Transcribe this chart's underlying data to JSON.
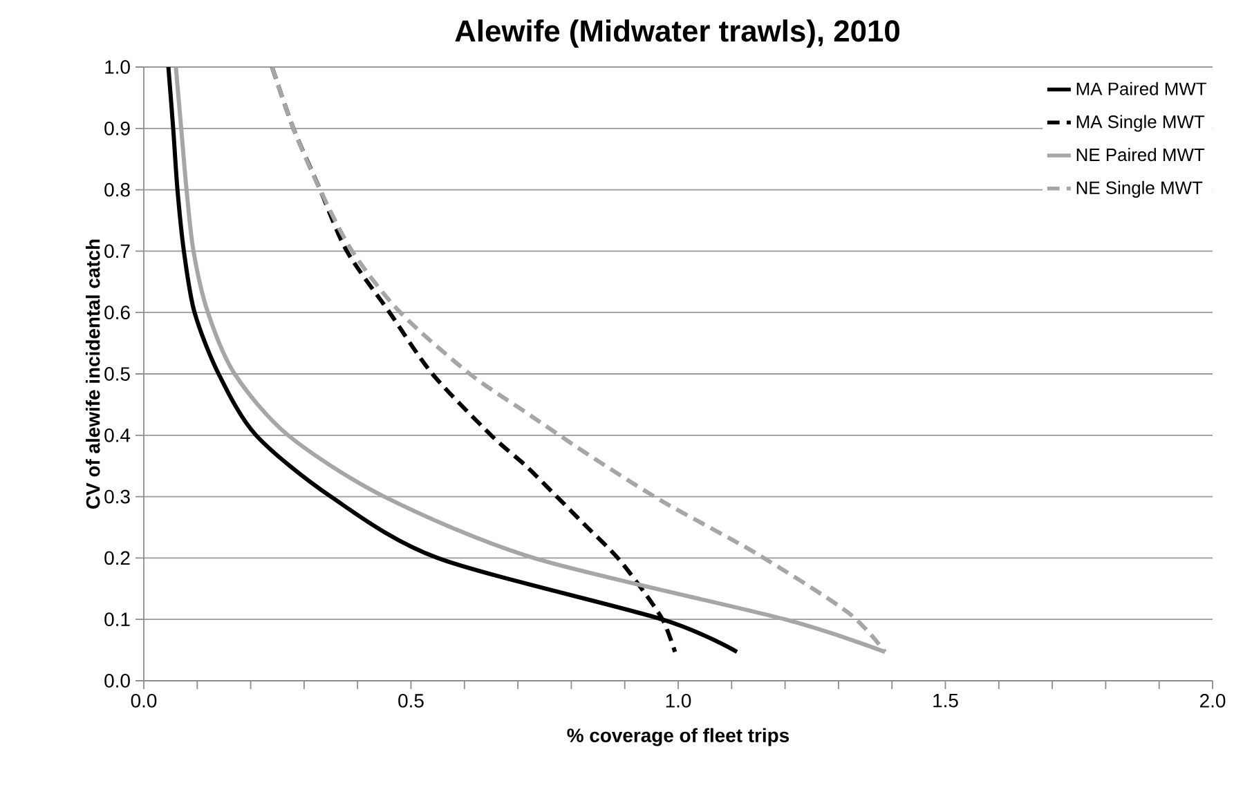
{
  "chart_data": {
    "type": "line",
    "title": "Alewife (Midwater trawls), 2010",
    "xlabel": "% coverage of fleet trips",
    "ylabel": "CV of alewife incidental catch",
    "xlim": [
      0,
      2
    ],
    "ylim": [
      0,
      1
    ],
    "xticks": [
      {
        "value": 0,
        "label": "0.0"
      },
      {
        "value": 0.1,
        "label": null
      },
      {
        "value": 0.2,
        "label": null
      },
      {
        "value": 0.3,
        "label": null
      },
      {
        "value": 0.4,
        "label": null
      },
      {
        "value": 0.5,
        "label": "0.5"
      },
      {
        "value": 0.6,
        "label": null
      },
      {
        "value": 0.7,
        "label": null
      },
      {
        "value": 0.8,
        "label": null
      },
      {
        "value": 0.9,
        "label": null
      },
      {
        "value": 1.0,
        "label": "1.0"
      },
      {
        "value": 1.1,
        "label": null
      },
      {
        "value": 1.2,
        "label": null
      },
      {
        "value": 1.3,
        "label": null
      },
      {
        "value": 1.4,
        "label": null
      },
      {
        "value": 1.5,
        "label": "1.5"
      },
      {
        "value": 1.6,
        "label": null
      },
      {
        "value": 1.7,
        "label": null
      },
      {
        "value": 1.8,
        "label": null
      },
      {
        "value": 1.9,
        "label": null
      },
      {
        "value": 2.0,
        "label": "2.0"
      }
    ],
    "yticks": [
      {
        "value": 0,
        "label": "0.0"
      },
      {
        "value": 0.1,
        "label": "0.1"
      },
      {
        "value": 0.2,
        "label": "0.2"
      },
      {
        "value": 0.3,
        "label": "0.3"
      },
      {
        "value": 0.4,
        "label": "0.4"
      },
      {
        "value": 0.5,
        "label": "0.5"
      },
      {
        "value": 0.6,
        "label": "0.6"
      },
      {
        "value": 0.7,
        "label": "0.7"
      },
      {
        "value": 0.8,
        "label": "0.8"
      },
      {
        "value": 0.9,
        "label": "0.9"
      },
      {
        "value": 1.0,
        "label": "1.0"
      }
    ],
    "grid": "y",
    "legend": "top right",
    "marker": "none",
    "series": [
      {
        "name": "MA Paired MWT",
        "color": "#000000",
        "line_style": "solid",
        "x": [
          0.046,
          0.055,
          0.063,
          0.075,
          0.095,
          0.14,
          0.21,
          0.35,
          0.55,
          0.97,
          1.11
        ],
        "values": [
          1.0,
          0.9,
          0.8,
          0.7,
          0.6,
          0.5,
          0.4,
          0.3,
          0.2,
          0.1,
          0.047
        ]
      },
      {
        "name": "MA Single MWT",
        "color": "#000000",
        "line_style": "dashed",
        "x": [
          0.24,
          0.28,
          0.33,
          0.38,
          0.46,
          0.54,
          0.65,
          0.714,
          0.766,
          0.83,
          0.887,
          0.94,
          0.973,
          0.994
        ],
        "values": [
          1.0,
          0.9,
          0.8,
          0.7,
          0.6,
          0.5,
          0.4,
          0.351,
          0.306,
          0.25,
          0.2,
          0.14,
          0.096,
          0.047
        ]
      },
      {
        "name": "NE Paired MWT",
        "color": "#a6a6a6",
        "line_style": "solid",
        "x": [
          0.06,
          0.07,
          0.08,
          0.093,
          0.12,
          0.17,
          0.27,
          0.45,
          0.73,
          1.2,
          1.387
        ],
        "values": [
          1.0,
          0.9,
          0.8,
          0.7,
          0.6,
          0.5,
          0.4,
          0.3,
          0.2,
          0.1,
          0.047
        ]
      },
      {
        "name": "NE Single MWT",
        "color": "#a6a6a6",
        "line_style": "dashed",
        "x": [
          0.24,
          0.28,
          0.33,
          0.39,
          0.48,
          0.61,
          0.714,
          0.766,
          0.843,
          0.973,
          1.145,
          1.318,
          1.387
        ],
        "values": [
          1.0,
          0.9,
          0.8,
          0.7,
          0.6,
          0.5,
          0.438,
          0.407,
          0.362,
          0.291,
          0.208,
          0.111,
          0.047
        ]
      }
    ]
  }
}
